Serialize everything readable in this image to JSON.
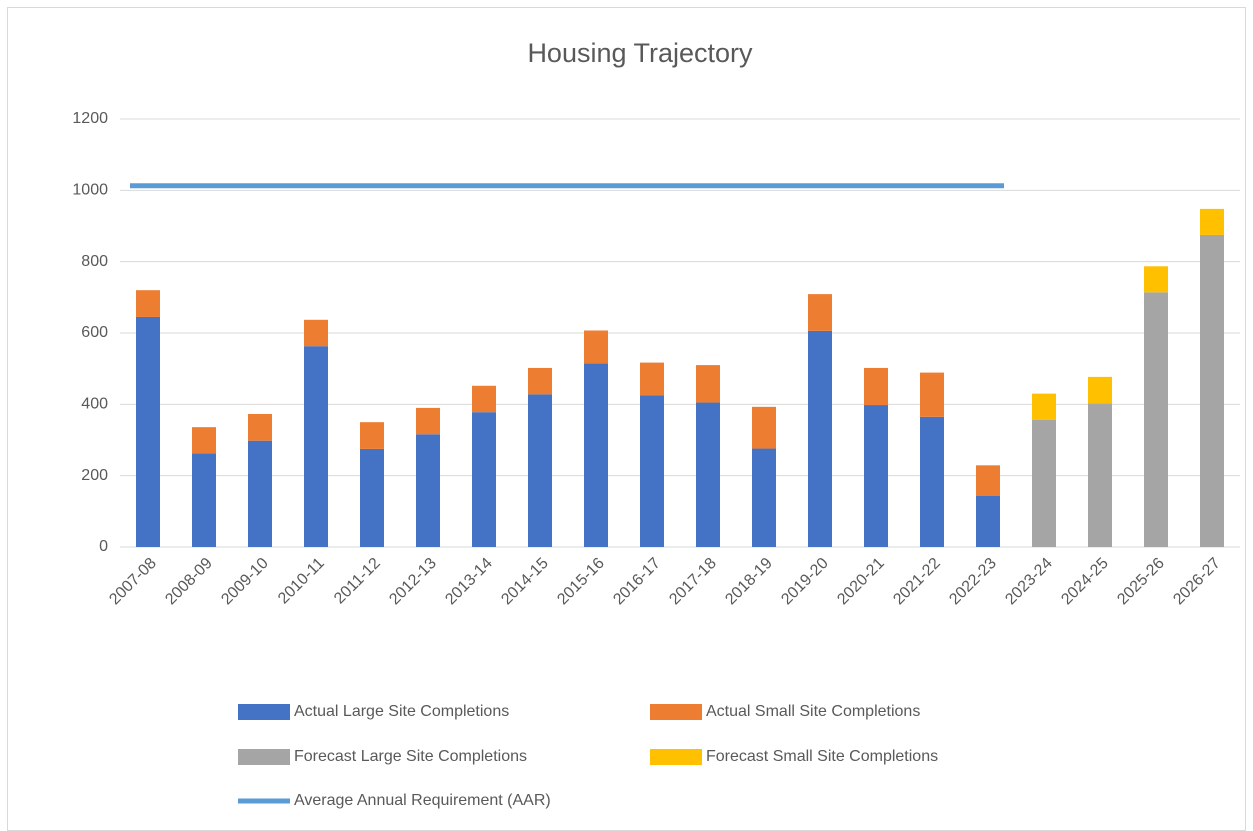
{
  "chart_data": {
    "type": "bar",
    "title": "Housing Trajectory",
    "categories": [
      "2007-08",
      "2008-09",
      "2009-10",
      "2010-11",
      "2011-12",
      "2012-13",
      "2013-14",
      "2014-15",
      "2015-16",
      "2016-17",
      "2017-18",
      "2018-19",
      "2019-20",
      "2020-21",
      "2021-22",
      "2022-23",
      "2023-24",
      "2024-25",
      "2025-26",
      "2026-27"
    ],
    "series": [
      {
        "name": "Actual Large Site Completions",
        "type": "bar",
        "color": "#4472c4",
        "values": [
          645,
          262,
          298,
          563,
          275,
          316,
          378,
          428,
          515,
          425,
          405,
          276,
          606,
          398,
          365,
          143,
          null,
          null,
          null,
          null
        ]
      },
      {
        "name": "Actual Small Site Completions",
        "type": "bar",
        "color": "#ed7d31",
        "values": [
          75,
          74,
          75,
          74,
          75,
          74,
          74,
          74,
          92,
          92,
          105,
          117,
          103,
          104,
          124,
          86,
          null,
          null,
          null,
          null
        ]
      },
      {
        "name": "Forecast Large Site Completions",
        "type": "bar",
        "color": "#a5a5a5",
        "values": [
          null,
          null,
          null,
          null,
          null,
          null,
          null,
          null,
          null,
          null,
          null,
          null,
          null,
          null,
          null,
          null,
          357,
          403,
          714,
          875
        ]
      },
      {
        "name": "Forecast Small Site Completions",
        "type": "bar",
        "color": "#ffc000",
        "values": [
          null,
          null,
          null,
          null,
          null,
          null,
          null,
          null,
          null,
          null,
          null,
          null,
          null,
          null,
          null,
          null,
          73,
          74,
          73,
          73
        ]
      },
      {
        "name": "Average Annual Requirement (AAR)",
        "type": "line",
        "color": "#5b9bd5",
        "values": [
          1013,
          1013,
          1013,
          1013,
          1013,
          1013,
          1013,
          1013,
          1013,
          1013,
          1013,
          1013,
          1013,
          1013,
          1013,
          1013,
          null,
          null,
          null,
          null
        ]
      }
    ],
    "ylim": [
      0,
      1200
    ],
    "yticks": [
      0,
      200,
      400,
      600,
      800,
      1000,
      1200
    ],
    "grid": true,
    "stacked": true,
    "legend": "bottom"
  }
}
